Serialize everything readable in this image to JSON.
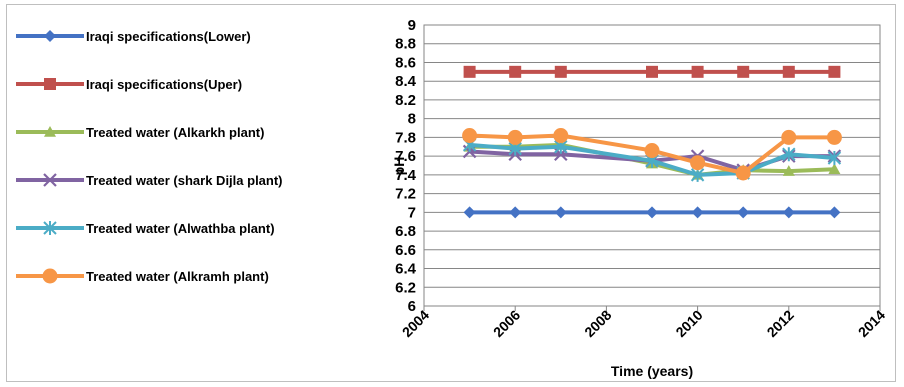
{
  "chart_data": {
    "type": "line",
    "title": "",
    "xlabel": "Time (years)",
    "ylabel": "pH",
    "xlim": [
      2004,
      2014
    ],
    "ylim": [
      6,
      9
    ],
    "x_ticks": [
      "2004",
      "2006",
      "2008",
      "2010",
      "2012",
      "2014"
    ],
    "y_ticks": [
      "6",
      "6.2",
      "6.4",
      "6.6",
      "6.8",
      "7",
      "7.2",
      "7.4",
      "7.6",
      "7.8",
      "8",
      "8.2",
      "8.4",
      "8.6",
      "8.8",
      "9"
    ],
    "grid": "horizontal",
    "legend_position": "left",
    "x": [
      2005,
      2006,
      2007,
      2009,
      2010,
      2011,
      2012,
      2013
    ],
    "series": [
      {
        "name": "Iraqi specifications(Lower)",
        "color": "#4472c4",
        "marker": "diamond",
        "values": [
          7,
          7,
          7,
          7,
          7,
          7,
          7,
          7
        ]
      },
      {
        "name": "Iraqi specifications(Uper)",
        "color": "#c0504d",
        "marker": "square",
        "values": [
          8.5,
          8.5,
          8.5,
          8.5,
          8.5,
          8.5,
          8.5,
          8.5
        ]
      },
      {
        "name": "Treated water (Alkarkh plant)",
        "color": "#9bbb59",
        "marker": "triangle",
        "values": [
          7.7,
          7.7,
          7.72,
          7.52,
          7.4,
          7.45,
          7.44,
          7.46
        ]
      },
      {
        "name": "Treated water (shark Dijla plant)",
        "color": "#8064a2",
        "marker": "x",
        "values": [
          7.65,
          7.62,
          7.62,
          7.55,
          7.6,
          7.45,
          7.6,
          7.6
        ]
      },
      {
        "name": "Treated water (Alwathba plant)",
        "color": "#4bacc6",
        "marker": "star",
        "values": [
          7.72,
          7.68,
          7.7,
          7.55,
          7.4,
          7.42,
          7.62,
          7.58
        ]
      },
      {
        "name": "Treated water (Alkramh plant)",
        "color": "#f79646",
        "marker": "circle",
        "values": [
          7.82,
          7.8,
          7.82,
          7.66,
          7.53,
          7.42,
          7.8,
          7.8
        ]
      }
    ]
  }
}
